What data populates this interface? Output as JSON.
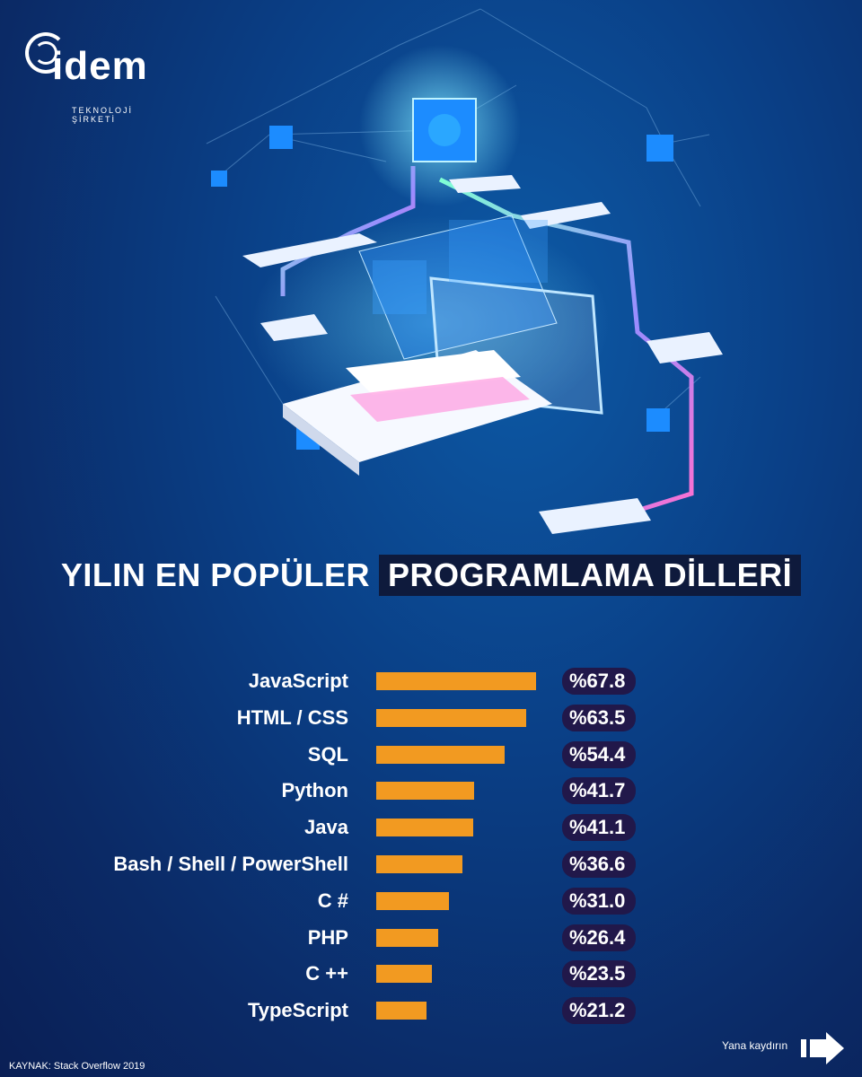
{
  "logo": {
    "brand": "idem",
    "tagline": "TEKNOLOJİ ŞİRKETİ"
  },
  "title": {
    "part1": "YILIN EN POPÜLER",
    "part2": "PROGRAMLAMA DİLLERİ"
  },
  "chart_data": {
    "type": "bar",
    "orientation": "horizontal",
    "categories": [
      "JavaScript",
      "HTML / CSS",
      "SQL",
      "Python",
      "Java",
      "Bash / Shell / PowerShell",
      "C #",
      "PHP",
      "C ++",
      "TypeScript"
    ],
    "values": [
      67.8,
      63.5,
      54.4,
      41.7,
      41.1,
      36.6,
      31.0,
      26.4,
      23.5,
      21.2
    ],
    "value_labels": [
      "%67.8",
      "%63.5",
      "%54.4",
      "%41.7",
      "%41.1",
      "%36.6",
      "%31.0",
      "%26.4",
      "%23.5",
      "%21.2"
    ],
    "xlim": [
      0,
      100
    ],
    "bar_color": "#f29a21",
    "grid": false
  },
  "source": "KAYNAK:  Stack Overflow 2019",
  "swipe_label": "Yana kaydırın",
  "icons": [
    "logo-icon",
    "arrow-right-icon"
  ],
  "colors": {
    "accent": "#f29a21",
    "value_bg": "#21184a",
    "background": "#0a3f86"
  }
}
